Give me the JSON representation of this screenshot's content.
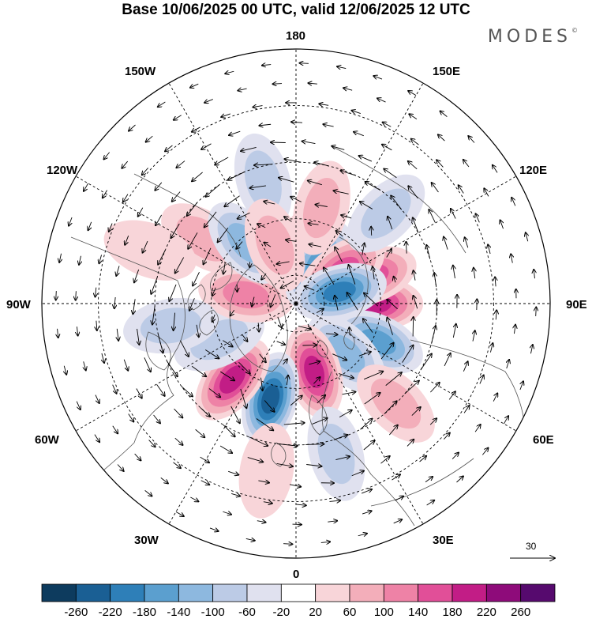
{
  "title": "Base 10/06/2025 00 UTC, valid 12/06/2025 12 UTC",
  "brand": "MODES",
  "brand_mark": "©",
  "longitude_labels": {
    "top": "180",
    "top_left": "150W",
    "top_right": "150E",
    "upper_left": "120W",
    "upper_right": "120E",
    "left": "90W",
    "right": "90E",
    "lower_left": "60W",
    "lower_right": "60E",
    "bottom_left": "30W",
    "bottom_right": "30E",
    "bottom": "0"
  },
  "reference_vector": {
    "label": "30"
  },
  "colorbar": {
    "labels": [
      "-260",
      "-220",
      "-180",
      "-140",
      "-100",
      "-60",
      "-20",
      "20",
      "60",
      "100",
      "140",
      "180",
      "220",
      "260"
    ],
    "colors": [
      "#0d3b5e",
      "#1a5f94",
      "#2e7fb8",
      "#5b9fcf",
      "#8db8df",
      "#bccbe6",
      "#e0e1ef",
      "#ffffff",
      "#f8d5d9",
      "#f3aeba",
      "#ee82a6",
      "#e14f98",
      "#c21d86",
      "#8e0b7a",
      "#560a6e"
    ]
  },
  "anomaly_centers": [
    {
      "lon": 90,
      "lat": 62,
      "value": 180
    },
    {
      "lon": 110,
      "lat": 62,
      "value": 140
    },
    {
      "lon": 65,
      "lat": 58,
      "value": -140
    },
    {
      "lon": 45,
      "lat": 65,
      "value": -100
    },
    {
      "lon": 15,
      "lat": 65,
      "value": 180
    },
    {
      "lon": -15,
      "lat": 55,
      "value": -220
    },
    {
      "lon": -40,
      "lat": 55,
      "value": 180
    },
    {
      "lon": -65,
      "lat": 60,
      "value": -60
    },
    {
      "lon": -100,
      "lat": 72,
      "value": 100
    },
    {
      "lon": -125,
      "lat": 50,
      "value": 60
    },
    {
      "lon": -140,
      "lat": 62,
      "value": -100
    },
    {
      "lon": 170,
      "lat": 72,
      "value": 140
    },
    {
      "lon": 150,
      "lat": 74,
      "value": -140
    },
    {
      "lon": 125,
      "lat": 70,
      "value": 140
    },
    {
      "lon": 105,
      "lat": 74,
      "value": -180
    },
    {
      "lon": -165,
      "lat": 45,
      "value": -60
    },
    {
      "lon": -110,
      "lat": 35,
      "value": 20
    },
    {
      "lon": 45,
      "lat": 40,
      "value": 60
    },
    {
      "lon": 15,
      "lat": 35,
      "value": -60
    },
    {
      "lon": -10,
      "lat": 30,
      "value": 20
    },
    {
      "lon": -160,
      "lat": 68,
      "value": 60
    },
    {
      "lon": 135,
      "lat": 45,
      "value": -60
    },
    {
      "lon": 165,
      "lat": 55,
      "value": 60
    },
    {
      "lon": -80,
      "lat": 45,
      "value": -60
    }
  ]
}
